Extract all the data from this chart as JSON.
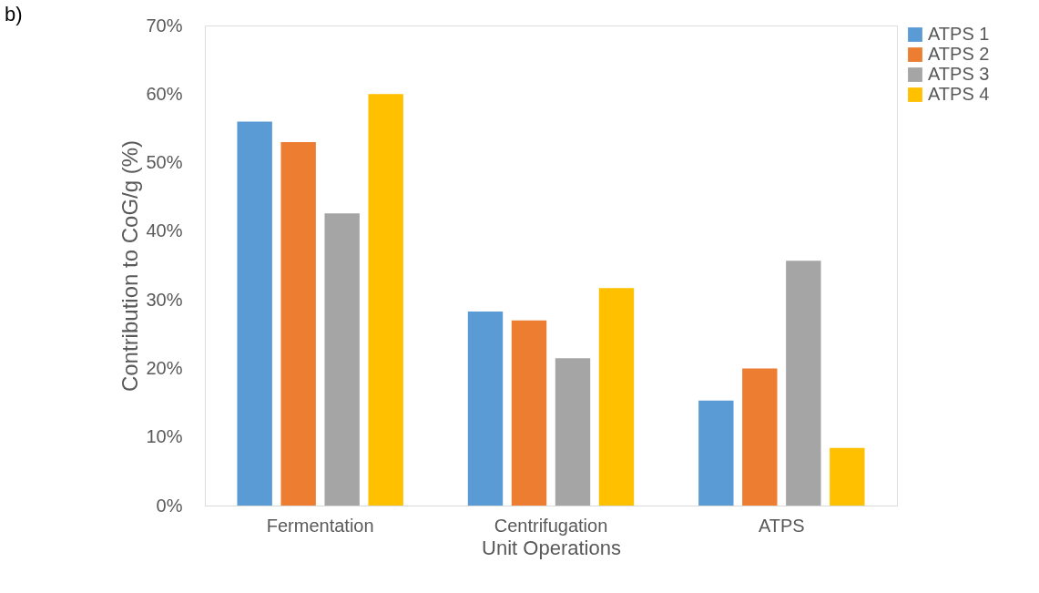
{
  "chart_data": {
    "type": "bar",
    "xlabel": "Unit Operations",
    "ylabel": "Contribution to CoG/g (%)",
    "annotations": [
      "b)"
    ],
    "categories": [
      "Fermentation",
      "Centrifugation",
      "ATPS"
    ],
    "series": [
      {
        "name": "ATPS 1",
        "color": "#5b9bd5",
        "values": [
          56,
          28.3,
          15.3
        ]
      },
      {
        "name": "ATPS 2",
        "color": "#ed7d31",
        "values": [
          53,
          27,
          20
        ]
      },
      {
        "name": "ATPS 3",
        "color": "#a5a5a5",
        "values": [
          42.6,
          21.5,
          35.7
        ]
      },
      {
        "name": "ATPS 4",
        "color": "#ffc000",
        "values": [
          60,
          31.7,
          8.4
        ]
      }
    ],
    "ylim": [
      0,
      70
    ],
    "yticks": [
      {
        "value": 0,
        "label": "0%"
      },
      {
        "value": 10,
        "label": "10%"
      },
      {
        "value": 20,
        "label": "20%"
      },
      {
        "value": 30,
        "label": "30%"
      },
      {
        "value": 40,
        "label": "40%"
      },
      {
        "value": 50,
        "label": "50%"
      },
      {
        "value": 60,
        "label": "60%"
      },
      {
        "value": 70,
        "label": "70%"
      }
    ],
    "grid": false,
    "legend": "right"
  }
}
